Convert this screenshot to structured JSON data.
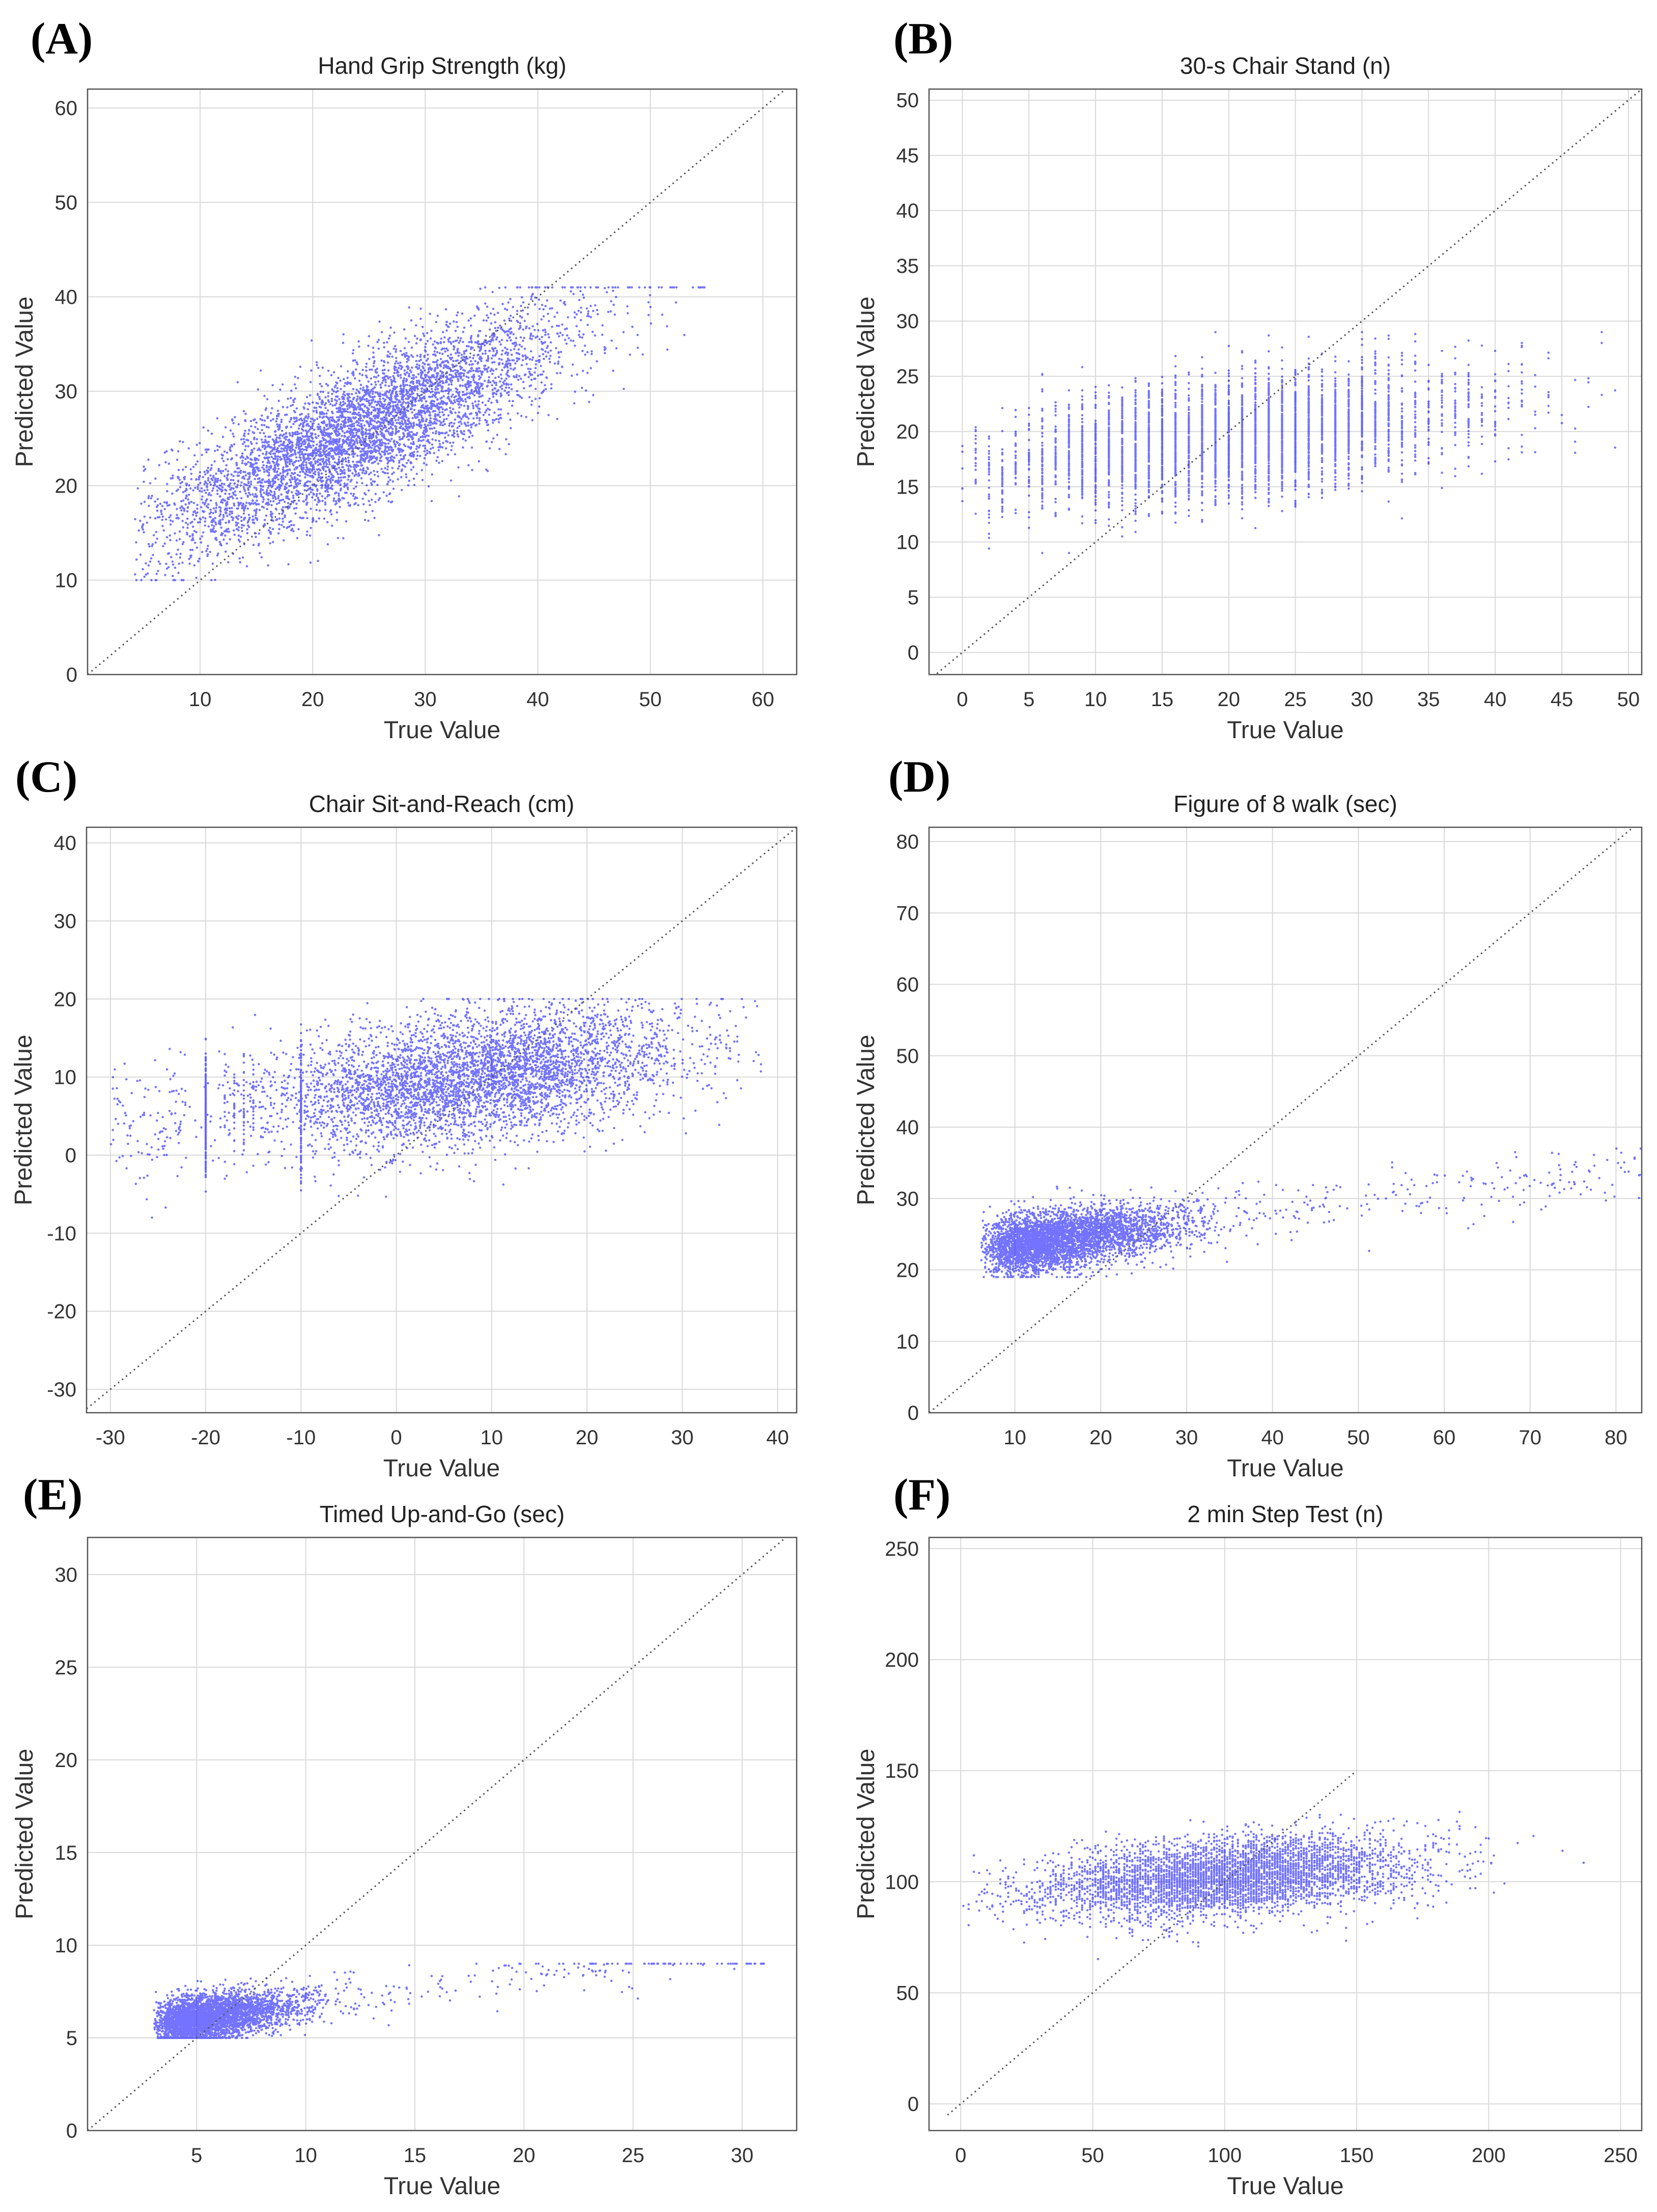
{
  "figure": {
    "colors": {
      "points": "#0000ff",
      "grid": "#d9d9d9",
      "diagonal": "#555555",
      "text": "#333333"
    }
  },
  "chart_data": [
    {
      "id": "A",
      "panel_label": "(A)",
      "type": "scatter",
      "title": "Hand Grip Strength (kg)",
      "xlabel": "True Value",
      "ylabel": "Predicted Value",
      "xlim": [
        0,
        63
      ],
      "ylim": [
        0,
        62
      ],
      "xticks": [
        10,
        20,
        30,
        40,
        50,
        60
      ],
      "yticks": [
        0,
        10,
        20,
        30,
        40,
        50,
        60
      ],
      "diagonal": [
        0,
        63
      ],
      "grid": true,
      "point_cloud": {
        "kind": "linear",
        "n": 5200,
        "x_min": 4,
        "x_max": 56,
        "x_center": 24,
        "x_spread": 9,
        "intercept": 12.5,
        "slope": 0.55,
        "y_noise": 3.2,
        "y_min": 10,
        "y_max": 41
      }
    },
    {
      "id": "B",
      "panel_label": "(B)",
      "type": "scatter",
      "title": "30-s Chair Stand (n)",
      "xlabel": "True Value",
      "ylabel": "Predicted Value",
      "xlim": [
        -2.5,
        51
      ],
      "ylim": [
        -2,
        51
      ],
      "xticks": [
        0,
        5,
        10,
        15,
        20,
        25,
        30,
        35,
        40,
        45,
        50
      ],
      "yticks": [
        0,
        5,
        10,
        15,
        20,
        25,
        30,
        35,
        40,
        45,
        50
      ],
      "diagonal": [
        -2.5,
        51
      ],
      "grid": true,
      "point_cloud": {
        "kind": "integer",
        "n": 4200,
        "x_min": 0,
        "x_max": 49,
        "x_center": 20,
        "x_spread": 9,
        "intercept": 16.5,
        "slope": 0.15,
        "y_noise": 2.6,
        "y_min": 9,
        "y_max": 29
      }
    },
    {
      "id": "C",
      "panel_label": "(C)",
      "type": "scatter",
      "title": "Chair Sit-and-Reach (cm)",
      "xlabel": "True Value",
      "ylabel": "Predicted Value",
      "xlim": [
        -32.5,
        42
      ],
      "ylim": [
        -33,
        42
      ],
      "xticks": [
        -30,
        -20,
        -10,
        0,
        10,
        20,
        30,
        40
      ],
      "yticks": [
        -30,
        -20,
        -10,
        0,
        10,
        20,
        30,
        40
      ],
      "diagonal": [
        -32.5,
        42
      ],
      "grid": true,
      "point_cloud": {
        "kind": "sitreach",
        "n": 5200,
        "x_min": -31,
        "x_max": 39,
        "x_center": 8,
        "x_spread": 11,
        "intercept": 8.5,
        "slope": 0.17,
        "y_noise": 4.0,
        "y_min": -8,
        "y_max": 20
      }
    },
    {
      "id": "D",
      "panel_label": "(D)",
      "type": "scatter",
      "title": "Figure of 8 walk (sec)",
      "xlabel": "True Value",
      "ylabel": "Predicted Value",
      "xlim": [
        0,
        83
      ],
      "ylim": [
        0,
        82
      ],
      "xticks": [
        10,
        20,
        30,
        40,
        50,
        60,
        70,
        80
      ],
      "yticks": [
        0,
        10,
        20,
        30,
        40,
        50,
        60,
        70,
        80
      ],
      "diagonal": [
        0,
        83
      ],
      "grid": true,
      "point_cloud": {
        "kind": "skewed",
        "n": 4500,
        "x_min": 6,
        "x_max": 83,
        "x_center": 22,
        "x_spread": 9,
        "intercept": 22,
        "slope": 0.15,
        "y_noise": 2.0,
        "y_min": 19,
        "y_max": 37
      }
    },
    {
      "id": "E",
      "panel_label": "(E)",
      "type": "scatter",
      "title": "Timed Up-and-Go (sec)",
      "xlabel": "True Value",
      "ylabel": "Predicted Value",
      "xlim": [
        0,
        32.5
      ],
      "ylim": [
        0,
        32
      ],
      "xticks": [
        5,
        10,
        15,
        20,
        25,
        30
      ],
      "yticks": [
        0,
        5,
        10,
        15,
        20,
        25,
        30
      ],
      "diagonal": [
        0,
        32.5
      ],
      "grid": true,
      "point_cloud": {
        "kind": "skewed",
        "n": 4000,
        "x_min": 3,
        "x_max": 31,
        "x_center": 6,
        "x_spread": 2.5,
        "intercept": 5.2,
        "slope": 0.16,
        "y_noise": 0.6,
        "y_min": 5,
        "y_max": 9
      }
    },
    {
      "id": "F",
      "panel_label": "(F)",
      "type": "scatter",
      "title": "2 min Step Test (n)",
      "xlabel": "True Value",
      "ylabel": "Predicted Value",
      "xlim": [
        -12,
        258
      ],
      "ylim": [
        -12,
        255
      ],
      "xticks": [
        0,
        50,
        100,
        150,
        200,
        250
      ],
      "yticks": [
        0,
        50,
        100,
        150,
        200,
        250
      ],
      "diagonal": [
        -5,
        150
      ],
      "grid": true,
      "point_cloud": {
        "kind": "integer",
        "n": 4800,
        "x_min": 0,
        "x_max": 245,
        "x_center": 100,
        "x_spread": 35,
        "intercept": 93,
        "slope": 0.09,
        "y_noise": 8.5,
        "y_min": 62,
        "y_max": 135
      }
    }
  ]
}
